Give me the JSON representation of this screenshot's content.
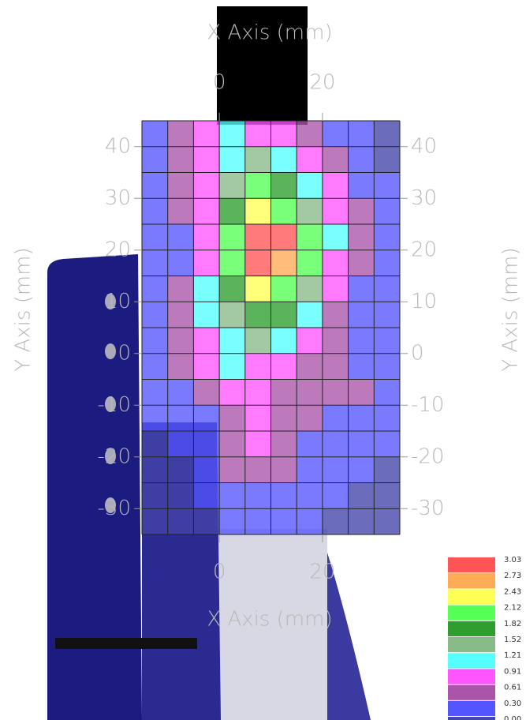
{
  "chart_data": {
    "type": "contour",
    "x_label": "X Axis (mm)",
    "y_label": "Y Axis (mm)",
    "xlim": [
      -15,
      35
    ],
    "ylim": [
      -35,
      45
    ],
    "xticks": [
      0,
      20
    ],
    "yticks": [
      40,
      30,
      20,
      10,
      0,
      -10,
      -20,
      -30
    ],
    "grid": true,
    "xgrid": [
      -15,
      -10,
      -5,
      0,
      5,
      10,
      15,
      20,
      25,
      30,
      35
    ],
    "ygrid": [
      45,
      40,
      35,
      30,
      25,
      20,
      15,
      10,
      5,
      0,
      -5,
      -10,
      -15,
      -20,
      -25,
      -30,
      -35
    ],
    "x": [
      -12.5,
      -7.5,
      -2.5,
      2.5,
      7.5,
      12.5,
      17.5,
      22.5,
      27.5,
      32.5
    ],
    "y": [
      42.5,
      37.5,
      32.5,
      27.5,
      22.5,
      17.5,
      12.5,
      7.5,
      2.5,
      -2.5,
      -7.5,
      -12.5,
      -17.5,
      -22.5,
      -27.5,
      -32.5
    ],
    "z": [
      [
        0.5,
        0.9,
        1.2,
        1.5,
        1.0,
        1.2,
        0.9,
        0.6,
        0.3,
        0.2
      ],
      [
        0.5,
        0.9,
        1.2,
        1.5,
        1.8,
        1.5,
        1.2,
        0.8,
        0.4,
        0.2
      ],
      [
        0.4,
        0.9,
        1.2,
        1.6,
        2.2,
        2.0,
        1.5,
        1.0,
        0.6,
        0.3
      ],
      [
        0.3,
        0.7,
        1.2,
        2.0,
        2.5,
        2.4,
        1.8,
        1.2,
        0.7,
        0.3
      ],
      [
        0.3,
        0.6,
        1.1,
        2.4,
        3.1,
        3.1,
        2.4,
        1.3,
        0.8,
        0.4
      ],
      [
        0.4,
        0.6,
        1.2,
        2.3,
        3.1,
        3.0,
        2.2,
        1.2,
        0.7,
        0.4
      ],
      [
        0.4,
        0.8,
        1.3,
        2.0,
        2.6,
        2.4,
        1.7,
        1.0,
        0.6,
        0.4
      ],
      [
        0.4,
        0.8,
        1.3,
        1.8,
        2.0,
        1.9,
        1.4,
        0.9,
        0.6,
        0.4
      ],
      [
        0.5,
        0.8,
        1.2,
        1.5,
        1.6,
        1.4,
        1.0,
        0.8,
        0.6,
        0.4
      ],
      [
        0.5,
        0.7,
        1.0,
        1.3,
        1.2,
        1.0,
        0.8,
        0.7,
        0.6,
        0.4
      ],
      [
        0.4,
        0.6,
        0.8,
        1.0,
        1.1,
        0.9,
        0.7,
        0.7,
        0.7,
        0.4
      ],
      [
        0.3,
        0.4,
        0.6,
        0.9,
        1.2,
        0.9,
        0.7,
        0.6,
        0.5,
        0.4
      ],
      [
        0.2,
        0.3,
        0.5,
        0.8,
        1.1,
        0.8,
        0.6,
        0.5,
        0.4,
        0.3
      ],
      [
        0.1,
        0.2,
        0.4,
        0.8,
        0.9,
        0.7,
        0.5,
        0.4,
        0.3,
        0.2
      ],
      [
        0.1,
        0.2,
        0.3,
        0.5,
        0.6,
        0.5,
        0.4,
        0.3,
        0.2,
        0.1
      ],
      [
        0.1,
        0.1,
        0.2,
        0.3,
        0.4,
        0.3,
        0.3,
        0.2,
        0.1,
        0.1
      ]
    ],
    "levels": [
      3.03,
      2.73,
      2.43,
      2.12,
      1.82,
      1.52,
      1.21,
      0.91,
      0.61,
      {
        "value": 0.3,
        "label": "0.30"
      },
      {
        "value": 0,
        "label": "0.00"
      }
    ],
    "colors": [
      "#ff5555",
      "#ffaa55",
      "#ffff55",
      "#55ff55",
      "#2e9e2e",
      "#88bb88",
      "#55ffff",
      "#ff55ff",
      "#aa55aa",
      "#5555ff",
      "#4444aa"
    ]
  }
}
